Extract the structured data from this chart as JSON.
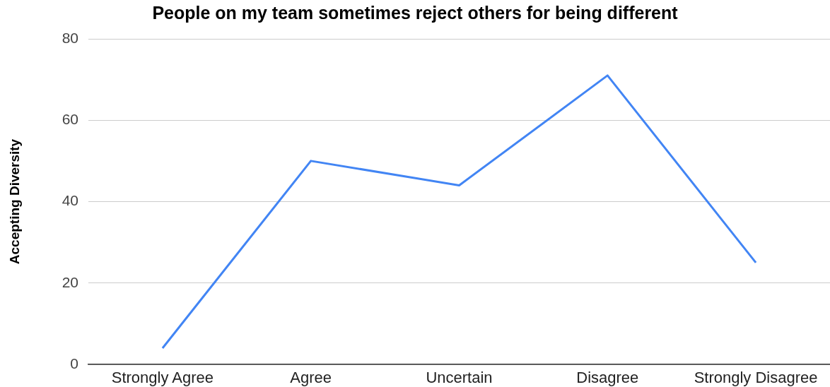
{
  "chart_data": {
    "type": "line",
    "title": "People on my team sometimes reject others for being different",
    "ylabel": "Accepting Diversity",
    "categories": [
      "Strongly Agree",
      "Agree",
      "Uncertain",
      "Disagree",
      "Strongly Disagree"
    ],
    "series": [
      {
        "color": "#4285f4",
        "values": [
          4,
          50,
          44,
          71,
          25
        ]
      }
    ],
    "ylim": [
      0,
      80
    ],
    "yticks": [
      0,
      20,
      40,
      60,
      80
    ],
    "grid": "y",
    "marker": "none",
    "line_style": "solid"
  }
}
